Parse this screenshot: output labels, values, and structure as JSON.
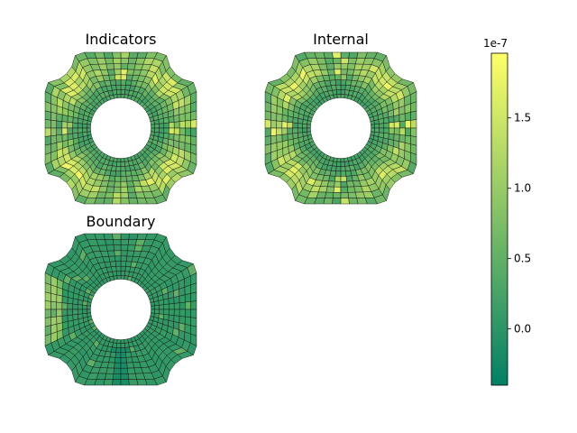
{
  "chart_data": {
    "type": "heatmap",
    "panels": [
      {
        "title": "Indicators",
        "pattern": "indicators"
      },
      {
        "title": "Internal",
        "pattern": "internal"
      },
      {
        "title": "Boundary",
        "pattern": "boundary"
      }
    ],
    "colorbar": {
      "colormap": "summer",
      "vmin": -4e-08,
      "vmax": 1.96e-07,
      "ticks": [
        0.0,
        0.5,
        1.0,
        1.5
      ],
      "offset_label": "1e-7"
    }
  }
}
